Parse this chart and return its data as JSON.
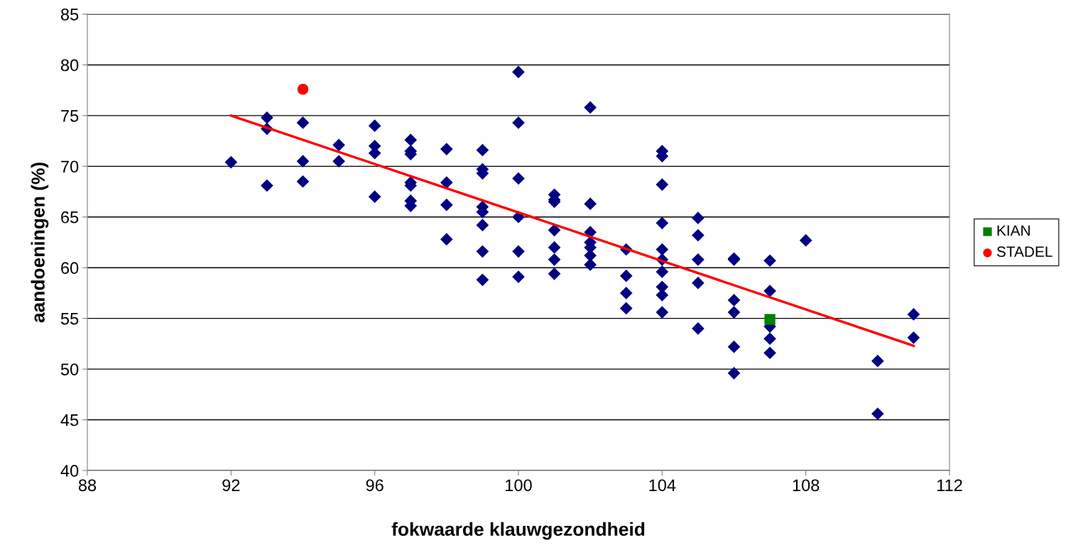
{
  "chart_data": {
    "type": "scatter",
    "xlabel": "fokwaarde klauwgezondheid",
    "ylabel": "aandoeningen (%)",
    "xlim": [
      88,
      112
    ],
    "xticks": [
      88,
      92,
      96,
      100,
      104,
      108,
      112
    ],
    "ylim": [
      40,
      85
    ],
    "yticks": [
      40,
      45,
      50,
      55,
      60,
      65,
      70,
      75,
      80,
      85
    ],
    "grid": "y",
    "legend": "right",
    "series": [
      {
        "color": "#000080",
        "marker": "diamond",
        "x": [
          92,
          93,
          93,
          93,
          94,
          94,
          94,
          95,
          95,
          96,
          96,
          96,
          96,
          97,
          97,
          97,
          97,
          97,
          97,
          97,
          98,
          98,
          98,
          98,
          99,
          99,
          99,
          99,
          99,
          99,
          99,
          99,
          100,
          100,
          100,
          100,
          100,
          100,
          101,
          101,
          101,
          101,
          101,
          101,
          101,
          102,
          102,
          102,
          102,
          102,
          102,
          102,
          103,
          103,
          103,
          103,
          104,
          104,
          104,
          104,
          104,
          104,
          104,
          104,
          104,
          104,
          105,
          105,
          105,
          105,
          105,
          106,
          106,
          106,
          106,
          106,
          106,
          107,
          107,
          107,
          107,
          107,
          108,
          110,
          110,
          111,
          111
        ],
        "values": [
          70.4,
          74.8,
          73.7,
          68.1,
          74.3,
          70.5,
          68.5,
          72.1,
          70.5,
          74.0,
          72.0,
          71.3,
          67.0,
          72.6,
          71.5,
          71.2,
          68.4,
          68.1,
          66.6,
          66.1,
          71.7,
          68.4,
          66.2,
          62.8,
          71.6,
          69.7,
          69.3,
          66.0,
          65.5,
          64.2,
          61.6,
          58.8,
          79.3,
          74.3,
          68.8,
          65.0,
          61.6,
          59.1,
          67.2,
          66.7,
          66.5,
          63.7,
          62.0,
          60.8,
          59.4,
          75.8,
          66.3,
          63.5,
          62.5,
          62.0,
          61.2,
          60.3,
          61.8,
          59.2,
          57.5,
          56.0,
          71.5,
          71.0,
          68.2,
          64.4,
          61.8,
          60.8,
          59.6,
          58.1,
          57.3,
          55.6,
          64.9,
          63.2,
          60.8,
          58.5,
          54.0,
          60.9,
          60.8,
          56.8,
          55.6,
          52.2,
          49.6,
          60.7,
          57.7,
          54.2,
          53.0,
          51.6,
          62.7,
          50.8,
          45.6,
          55.4,
          53.1
        ]
      },
      {
        "type": "line",
        "color": "#ff0000",
        "marker": "none",
        "x": [
          92,
          111
        ],
        "values": [
          75.0,
          52.3
        ]
      },
      {
        "type": "scatter",
        "name": "KIAN",
        "color": "#008000",
        "marker": "square",
        "x": [
          107
        ],
        "values": [
          54.9
        ]
      },
      {
        "type": "scatter",
        "name": "STADEL",
        "color": "#ff0000",
        "marker": "circle",
        "x": [
          94
        ],
        "values": [
          77.6
        ]
      }
    ]
  }
}
